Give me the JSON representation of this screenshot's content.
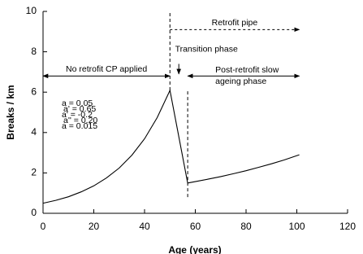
{
  "chart_data": {
    "type": "line",
    "x_label": "Age (years)",
    "y_label": "Breaks / km",
    "x": [
      0,
      5,
      10,
      15,
      20,
      25,
      30,
      35,
      40,
      45,
      50,
      57,
      60,
      65,
      70,
      75,
      80,
      85,
      90,
      95,
      101
    ],
    "values": [
      0.5,
      0.64,
      0.82,
      1.06,
      1.36,
      1.75,
      2.24,
      2.88,
      3.69,
      4.74,
      6.09,
      1.5,
      1.57,
      1.69,
      1.82,
      1.96,
      2.11,
      2.28,
      2.45,
      2.64,
      2.9
    ],
    "color": "#000000",
    "xlim": [
      0,
      120
    ],
    "xticks": [
      0,
      20,
      40,
      60,
      80,
      100,
      120
    ],
    "ylim": [
      0,
      10
    ],
    "yticks": [
      0,
      2,
      4,
      6,
      8,
      10
    ],
    "vlines": [
      {
        "x": 50,
        "y": [
          6.09,
          10
        ]
      },
      {
        "x": 57,
        "y": [
          0.8,
          6.1
        ]
      }
    ],
    "annotations": [
      {
        "text": "No retrofit CP applied",
        "x": [
          0,
          50
        ],
        "y": 6.8,
        "arrow": "double"
      },
      {
        "lines": [
          "Post-retrofit slow",
          "ageing phase"
        ],
        "x": [
          57,
          101
        ],
        "y": 6.8,
        "arrow": "double"
      },
      {
        "text": "Retrofit pipe",
        "x": [
          50,
          101
        ],
        "y": 9.1,
        "arrow": "end",
        "dotted": true
      },
      {
        "text": "Transition phase",
        "x": [
          53.5,
          53.5
        ],
        "y": [
          7.4,
          6.9
        ],
        "arrow": "down"
      }
    ],
    "params": [
      "a = 0.05",
      "a' = 0.65",
      "a' = -0.2",
      "a'' = 0.20",
      "a = 0.015"
    ]
  }
}
